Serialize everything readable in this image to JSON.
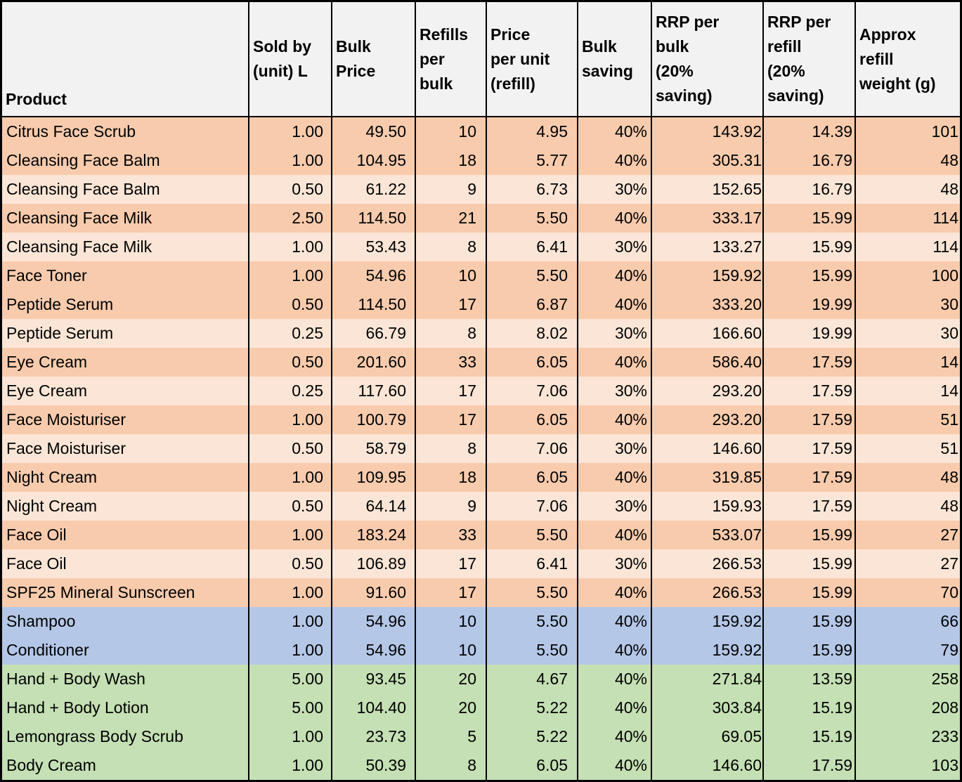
{
  "table": {
    "columns": [
      {
        "id": "product",
        "label": "Product"
      },
      {
        "id": "sold-by-unit",
        "label": "Sold by\n(unit) L"
      },
      {
        "id": "bulk-price",
        "label": "Bulk\nPrice"
      },
      {
        "id": "refills-per-bulk",
        "label": "Refills\nper\nbulk"
      },
      {
        "id": "price-per-unit-refill",
        "label": "Price\nper unit\n(refill)"
      },
      {
        "id": "bulk-saving",
        "label": "Bulk\nsaving"
      },
      {
        "id": "rrp-per-bulk",
        "label": "RRP per\nbulk\n(20%\nsaving)"
      },
      {
        "id": "rrp-per-refill",
        "label": "RRP per\nrefill\n(20%\nsaving)"
      },
      {
        "id": "approx-refill-weight",
        "label": "Approx\nrefill\nweight (g)"
      }
    ],
    "rows": [
      {
        "shade": "orange_dark",
        "cells": [
          "Citrus Face Scrub",
          "1.00",
          "49.50",
          "10",
          "4.95",
          "40%",
          "143.92",
          "14.39",
          "101"
        ]
      },
      {
        "shade": "orange_dark",
        "cells": [
          "Cleansing Face Balm",
          "1.00",
          "104.95",
          "18",
          "5.77",
          "40%",
          "305.31",
          "16.79",
          "48"
        ]
      },
      {
        "shade": "orange_light",
        "cells": [
          "Cleansing Face Balm",
          "0.50",
          "61.22",
          "9",
          "6.73",
          "30%",
          "152.65",
          "16.79",
          "48"
        ]
      },
      {
        "shade": "orange_dark",
        "cells": [
          "Cleansing Face Milk",
          "2.50",
          "114.50",
          "21",
          "5.50",
          "40%",
          "333.17",
          "15.99",
          "114"
        ]
      },
      {
        "shade": "orange_light",
        "cells": [
          "Cleansing Face Milk",
          "1.00",
          "53.43",
          "8",
          "6.41",
          "30%",
          "133.27",
          "15.99",
          "114"
        ]
      },
      {
        "shade": "orange_dark",
        "cells": [
          "Face Toner",
          "1.00",
          "54.96",
          "10",
          "5.50",
          "40%",
          "159.92",
          "15.99",
          "100"
        ]
      },
      {
        "shade": "orange_dark",
        "cells": [
          "Peptide Serum",
          "0.50",
          "114.50",
          "17",
          "6.87",
          "40%",
          "333.20",
          "19.99",
          "30"
        ]
      },
      {
        "shade": "orange_light",
        "cells": [
          "Peptide Serum",
          "0.25",
          "66.79",
          "8",
          "8.02",
          "30%",
          "166.60",
          "19.99",
          "30"
        ]
      },
      {
        "shade": "orange_dark",
        "cells": [
          "Eye Cream",
          "0.50",
          "201.60",
          "33",
          "6.05",
          "40%",
          "586.40",
          "17.59",
          "14"
        ]
      },
      {
        "shade": "orange_light",
        "cells": [
          "Eye Cream",
          "0.25",
          "117.60",
          "17",
          "7.06",
          "30%",
          "293.20",
          "17.59",
          "14"
        ]
      },
      {
        "shade": "orange_dark",
        "cells": [
          "Face Moisturiser",
          "1.00",
          "100.79",
          "17",
          "6.05",
          "40%",
          "293.20",
          "17.59",
          "51"
        ]
      },
      {
        "shade": "orange_light",
        "cells": [
          "Face Moisturiser",
          "0.50",
          "58.79",
          "8",
          "7.06",
          "30%",
          "146.60",
          "17.59",
          "51"
        ]
      },
      {
        "shade": "orange_dark",
        "cells": [
          "Night Cream",
          "1.00",
          "109.95",
          "18",
          "6.05",
          "40%",
          "319.85",
          "17.59",
          "48"
        ]
      },
      {
        "shade": "orange_light",
        "cells": [
          "Night Cream",
          "0.50",
          "64.14",
          "9",
          "7.06",
          "30%",
          "159.93",
          "17.59",
          "48"
        ]
      },
      {
        "shade": "orange_dark",
        "cells": [
          "Face Oil",
          "1.00",
          "183.24",
          "33",
          "5.50",
          "40%",
          "533.07",
          "15.99",
          "27"
        ]
      },
      {
        "shade": "orange_light",
        "cells": [
          "Face Oil",
          "0.50",
          "106.89",
          "17",
          "6.41",
          "30%",
          "266.53",
          "15.99",
          "27"
        ]
      },
      {
        "shade": "orange_dark",
        "cells": [
          "SPF25 Mineral Sunscreen",
          "1.00",
          "91.60",
          "17",
          "5.50",
          "40%",
          "266.53",
          "15.99",
          "70"
        ]
      },
      {
        "shade": "blue",
        "cells": [
          "Shampoo",
          "1.00",
          "54.96",
          "10",
          "5.50",
          "40%",
          "159.92",
          "15.99",
          "66"
        ]
      },
      {
        "shade": "blue",
        "cells": [
          "Conditioner",
          "1.00",
          "54.96",
          "10",
          "5.50",
          "40%",
          "159.92",
          "15.99",
          "79"
        ]
      },
      {
        "shade": "green",
        "cells": [
          "Hand + Body Wash",
          "5.00",
          "93.45",
          "20",
          "4.67",
          "40%",
          "271.84",
          "13.59",
          "258"
        ]
      },
      {
        "shade": "green",
        "cells": [
          "Hand + Body Lotion",
          "5.00",
          "104.40",
          "20",
          "5.22",
          "40%",
          "303.84",
          "15.19",
          "208"
        ]
      },
      {
        "shade": "green",
        "cells": [
          "Lemongrass Body Scrub",
          "1.00",
          "23.73",
          "5",
          "5.22",
          "40%",
          "69.05",
          "15.19",
          "233"
        ]
      },
      {
        "shade": "green",
        "cells": [
          "Body Cream",
          "1.00",
          "50.39",
          "8",
          "6.05",
          "40%",
          "146.60",
          "17.59",
          "103"
        ]
      }
    ]
  },
  "colors": {
    "header_bg": "#F2F2F2",
    "orange_dark": "#F8CBAD",
    "orange_light": "#FBE5D6",
    "blue": "#B4C7E7",
    "green": "#C5E0B4",
    "grid_line": "#000000",
    "text": "#000000"
  }
}
